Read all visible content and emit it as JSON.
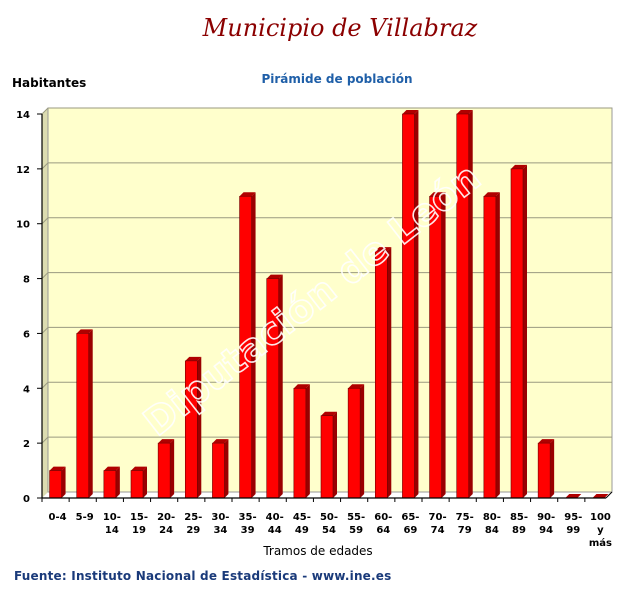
{
  "header": {
    "title": "Municipio de Villabraz",
    "subtitle": "Pirámide de población"
  },
  "footer": {
    "source": "Fuente: Instituto Nacional de Estadística - www.ine.es"
  },
  "colors": {
    "bar": "#ff0000",
    "bar_side": "#9a0000",
    "plot_bg": "#ffffcc",
    "title": "#8b0000",
    "subtitle": "#1f5fa8"
  },
  "chart_data": {
    "type": "bar",
    "title": "Pirámide de población",
    "xlabel": "Tramos de edades",
    "ylabel": "Habitantes",
    "ylim": [
      0,
      14
    ],
    "yticks": [
      0,
      2,
      4,
      6,
      8,
      10,
      12,
      14
    ],
    "grid": true,
    "categories": [
      "0-4",
      "5-9",
      "10-14",
      "15-19",
      "20-24",
      "25-29",
      "30-34",
      "35-39",
      "40-44",
      "45-49",
      "50-54",
      "55-59",
      "60-64",
      "65-69",
      "70-74",
      "75-79",
      "80-84",
      "85-89",
      "90-94",
      "95-99",
      "100 y más"
    ],
    "category_lines": [
      [
        "0-4"
      ],
      [
        "5-9"
      ],
      [
        "10-",
        "14"
      ],
      [
        "15-",
        "19"
      ],
      [
        "20-",
        "24"
      ],
      [
        "25-",
        "29"
      ],
      [
        "30-",
        "34"
      ],
      [
        "35-",
        "39"
      ],
      [
        "40-",
        "44"
      ],
      [
        "45-",
        "49"
      ],
      [
        "50-",
        "54"
      ],
      [
        "55-",
        "59"
      ],
      [
        "60-",
        "64"
      ],
      [
        "65-",
        "69"
      ],
      [
        "70-",
        "74"
      ],
      [
        "75-",
        "79"
      ],
      [
        "80-",
        "84"
      ],
      [
        "85-",
        "89"
      ],
      [
        "90-",
        "94"
      ],
      [
        "95-",
        "99"
      ],
      [
        "100",
        "y",
        "más"
      ]
    ],
    "values": [
      1,
      6,
      1,
      1,
      2,
      5,
      2,
      11,
      8,
      4,
      3,
      4,
      9,
      14,
      11,
      14,
      11,
      12,
      2,
      0,
      0
    ]
  }
}
